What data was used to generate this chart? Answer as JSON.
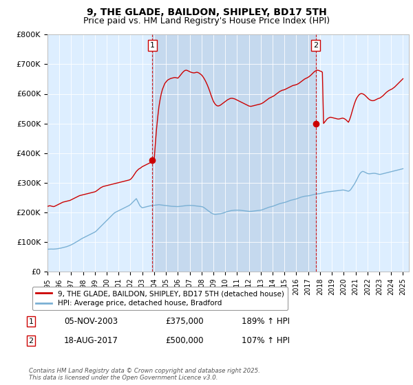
{
  "title": "9, THE GLADE, BAILDON, SHIPLEY, BD17 5TH",
  "subtitle": "Price paid vs. HM Land Registry's House Price Index (HPI)",
  "ylabel_ticks": [
    "£0",
    "£100K",
    "£200K",
    "£300K",
    "£400K",
    "£500K",
    "£600K",
    "£700K",
    "£800K"
  ],
  "ylim": [
    0,
    800000
  ],
  "xlim_start": 1995.0,
  "xlim_end": 2025.5,
  "line1_color": "#cc0000",
  "line2_color": "#7ab0d4",
  "bg_color": "#ddeeff",
  "shade_color": "#c5d9ee",
  "transaction1_x": 2003.844,
  "transaction1_y": 375000,
  "transaction2_x": 2017.633,
  "transaction2_y": 500000,
  "marker_label1": "1",
  "marker_label2": "2",
  "legend_line1": "9, THE GLADE, BAILDON, SHIPLEY, BD17 5TH (detached house)",
  "legend_line2": "HPI: Average price, detached house, Bradford",
  "table_row1": [
    "1",
    "05-NOV-2003",
    "£375,000",
    "189% ↑ HPI"
  ],
  "table_row2": [
    "2",
    "18-AUG-2017",
    "£500,000",
    "107% ↑ HPI"
  ],
  "footnote": "Contains HM Land Registry data © Crown copyright and database right 2025.\nThis data is licensed under the Open Government Licence v3.0.",
  "title_fontsize": 10,
  "subtitle_fontsize": 9,
  "tick_fontsize": 8,
  "hpi_data": {
    "years": [
      1995.0,
      1995.1,
      1995.2,
      1995.3,
      1995.4,
      1995.5,
      1995.6,
      1995.7,
      1995.8,
      1995.9,
      1996.0,
      1996.1,
      1996.2,
      1996.3,
      1996.4,
      1996.5,
      1996.6,
      1996.7,
      1996.8,
      1996.9,
      1997.0,
      1997.1,
      1997.2,
      1997.3,
      1997.4,
      1997.5,
      1997.6,
      1997.7,
      1997.8,
      1997.9,
      1998.0,
      1998.1,
      1998.2,
      1998.3,
      1998.4,
      1998.5,
      1998.6,
      1998.7,
      1998.8,
      1998.9,
      1999.0,
      1999.1,
      1999.2,
      1999.3,
      1999.4,
      1999.5,
      1999.6,
      1999.7,
      1999.8,
      1999.9,
      2000.0,
      2000.1,
      2000.2,
      2000.3,
      2000.4,
      2000.5,
      2000.6,
      2000.7,
      2000.8,
      2000.9,
      2001.0,
      2001.1,
      2001.2,
      2001.3,
      2001.4,
      2001.5,
      2001.6,
      2001.7,
      2001.8,
      2001.9,
      2002.0,
      2002.1,
      2002.2,
      2002.3,
      2002.4,
      2002.5,
      2002.6,
      2002.7,
      2002.8,
      2002.9,
      2003.0,
      2003.1,
      2003.2,
      2003.3,
      2003.4,
      2003.5,
      2003.6,
      2003.7,
      2003.8,
      2003.9,
      2004.0,
      2004.1,
      2004.2,
      2004.3,
      2004.4,
      2004.5,
      2004.6,
      2004.7,
      2004.8,
      2004.9,
      2005.0,
      2005.1,
      2005.2,
      2005.3,
      2005.4,
      2005.5,
      2005.6,
      2005.7,
      2005.8,
      2005.9,
      2006.0,
      2006.1,
      2006.2,
      2006.3,
      2006.4,
      2006.5,
      2006.6,
      2006.7,
      2006.8,
      2006.9,
      2007.0,
      2007.1,
      2007.2,
      2007.3,
      2007.4,
      2007.5,
      2007.6,
      2007.7,
      2007.8,
      2007.9,
      2008.0,
      2008.1,
      2008.2,
      2008.3,
      2008.4,
      2008.5,
      2008.6,
      2008.7,
      2008.8,
      2008.9,
      2009.0,
      2009.1,
      2009.2,
      2009.3,
      2009.4,
      2009.5,
      2009.6,
      2009.7,
      2009.8,
      2009.9,
      2010.0,
      2010.1,
      2010.2,
      2010.3,
      2010.4,
      2010.5,
      2010.6,
      2010.7,
      2010.8,
      2010.9,
      2011.0,
      2011.1,
      2011.2,
      2011.3,
      2011.4,
      2011.5,
      2011.6,
      2011.7,
      2011.8,
      2011.9,
      2012.0,
      2012.1,
      2012.2,
      2012.3,
      2012.4,
      2012.5,
      2012.6,
      2012.7,
      2012.8,
      2012.9,
      2013.0,
      2013.1,
      2013.2,
      2013.3,
      2013.4,
      2013.5,
      2013.6,
      2013.7,
      2013.8,
      2013.9,
      2014.0,
      2014.1,
      2014.2,
      2014.3,
      2014.4,
      2014.5,
      2014.6,
      2014.7,
      2014.8,
      2014.9,
      2015.0,
      2015.1,
      2015.2,
      2015.3,
      2015.4,
      2015.5,
      2015.6,
      2015.7,
      2015.8,
      2015.9,
      2016.0,
      2016.1,
      2016.2,
      2016.3,
      2016.4,
      2016.5,
      2016.6,
      2016.7,
      2016.8,
      2016.9,
      2017.0,
      2017.1,
      2017.2,
      2017.3,
      2017.4,
      2017.5,
      2017.6,
      2017.7,
      2017.8,
      2017.9,
      2018.0,
      2018.1,
      2018.2,
      2018.3,
      2018.4,
      2018.5,
      2018.6,
      2018.7,
      2018.8,
      2018.9,
      2019.0,
      2019.1,
      2019.2,
      2019.3,
      2019.4,
      2019.5,
      2019.6,
      2019.7,
      2019.8,
      2019.9,
      2020.0,
      2020.1,
      2020.2,
      2020.3,
      2020.4,
      2020.5,
      2020.6,
      2020.7,
      2020.8,
      2020.9,
      2021.0,
      2021.1,
      2021.2,
      2021.3,
      2021.4,
      2021.5,
      2021.6,
      2021.7,
      2021.8,
      2021.9,
      2022.0,
      2022.1,
      2022.2,
      2022.3,
      2022.4,
      2022.5,
      2022.6,
      2022.7,
      2022.8,
      2022.9,
      2023.0,
      2023.1,
      2023.2,
      2023.3,
      2023.4,
      2023.5,
      2023.6,
      2023.7,
      2023.8,
      2023.9,
      2024.0,
      2024.1,
      2024.2,
      2024.3,
      2024.4,
      2024.5,
      2024.6,
      2024.7,
      2024.8,
      2024.9,
      2025.0
    ],
    "values": [
      75000,
      75200,
      75400,
      75600,
      75500,
      75400,
      75600,
      76000,
      76500,
      77000,
      78000,
      78500,
      79500,
      80500,
      81500,
      82500,
      83500,
      85000,
      86500,
      88000,
      90000,
      92000,
      94000,
      96500,
      99000,
      101000,
      103500,
      106000,
      108500,
      111000,
      113000,
      115000,
      117000,
      119000,
      121000,
      123000,
      125000,
      127000,
      129000,
      131000,
      133000,
      136000,
      140000,
      144000,
      148000,
      152000,
      156000,
      160000,
      164000,
      168000,
      172000,
      176000,
      180000,
      184000,
      188000,
      192000,
      196000,
      199000,
      201000,
      203000,
      205000,
      207000,
      209000,
      211000,
      213000,
      215000,
      217000,
      219000,
      221000,
      223000,
      226000,
      230000,
      234000,
      238000,
      242000,
      246000,
      238000,
      230000,
      222000,
      218000,
      215000,
      216000,
      217000,
      218000,
      219000,
      220000,
      221000,
      222000,
      222500,
      223000,
      223500,
      224000,
      224500,
      225000,
      225500,
      225000,
      224500,
      224000,
      223500,
      223000,
      222500,
      222000,
      221500,
      221000,
      220500,
      220000,
      219800,
      219600,
      219400,
      219200,
      219000,
      219500,
      220000,
      220500,
      221000,
      221500,
      222000,
      222500,
      222800,
      223000,
      223200,
      223000,
      222800,
      222500,
      222000,
      221500,
      221000,
      220500,
      220000,
      219500,
      219000,
      218000,
      216000,
      213000,
      210000,
      207000,
      204000,
      201000,
      198000,
      196000,
      194000,
      193000,
      193000,
      193500,
      194000,
      194500,
      195000,
      196000,
      197000,
      198000,
      200000,
      201000,
      202500,
      203500,
      204500,
      205500,
      206000,
      206500,
      207000,
      207000,
      207000,
      207000,
      207000,
      206500,
      206000,
      205500,
      205000,
      204500,
      204000,
      203500,
      203000,
      203000,
      203000,
      203500,
      204000,
      204500,
      205000,
      205500,
      206000,
      206500,
      207000,
      208000,
      209500,
      211000,
      212500,
      214000,
      215500,
      217000,
      218000,
      219000,
      220000,
      221500,
      223000,
      224500,
      226000,
      227500,
      229000,
      230000,
      231000,
      232000,
      233000,
      234000,
      235500,
      237000,
      238500,
      240000,
      241000,
      242000,
      243000,
      244000,
      245000,
      246500,
      248000,
      249500,
      251000,
      252000,
      253000,
      254000,
      254500,
      255000,
      255500,
      256000,
      257000,
      258000,
      259000,
      260000,
      261000,
      261500,
      262000,
      262500,
      263000,
      264000,
      265000,
      266000,
      267000,
      268000,
      268500,
      269000,
      269500,
      270000,
      270500,
      271000,
      271500,
      272000,
      272500,
      273000,
      273500,
      274000,
      274500,
      275000,
      275000,
      274000,
      273000,
      272000,
      271000,
      273000,
      277000,
      283000,
      289000,
      295000,
      302000,
      310000,
      318000,
      326000,
      332000,
      336000,
      338000,
      337000,
      335000,
      333000,
      331000,
      330000,
      330000,
      330500,
      331000,
      331500,
      331500,
      331000,
      330000,
      329000,
      328000,
      328000,
      329000,
      330000,
      331000,
      332000,
      333000,
      334000,
      335000,
      336000,
      337000,
      338000,
      339000,
      340000,
      341000,
      342000,
      343000,
      344000,
      345000,
      346000,
      347000
    ]
  },
  "red_data": {
    "years": [
      1995.0,
      1995.1,
      1995.2,
      1995.3,
      1995.4,
      1995.5,
      1995.6,
      1995.7,
      1995.8,
      1995.9,
      1996.0,
      1996.1,
      1996.2,
      1996.3,
      1996.4,
      1996.5,
      1996.6,
      1996.7,
      1996.8,
      1996.9,
      1997.0,
      1997.1,
      1997.2,
      1997.3,
      1997.4,
      1997.5,
      1997.6,
      1997.7,
      1997.8,
      1997.9,
      1998.0,
      1998.1,
      1998.2,
      1998.3,
      1998.4,
      1998.5,
      1998.6,
      1998.7,
      1998.8,
      1998.9,
      1999.0,
      1999.1,
      1999.2,
      1999.3,
      1999.4,
      1999.5,
      1999.6,
      1999.7,
      1999.8,
      1999.9,
      2000.0,
      2000.1,
      2000.2,
      2000.3,
      2000.4,
      2000.5,
      2000.6,
      2000.7,
      2000.8,
      2000.9,
      2001.0,
      2001.1,
      2001.2,
      2001.3,
      2001.4,
      2001.5,
      2001.6,
      2001.7,
      2001.8,
      2001.9,
      2002.0,
      2002.1,
      2002.2,
      2002.3,
      2002.4,
      2002.5,
      2002.6,
      2002.7,
      2002.8,
      2002.9,
      2003.0,
      2003.1,
      2003.2,
      2003.3,
      2003.4,
      2003.5,
      2003.6,
      2003.7,
      2003.8,
      2003.9,
      2004.0,
      2004.1,
      2004.2,
      2004.3,
      2004.4,
      2004.5,
      2004.6,
      2004.7,
      2004.8,
      2004.9,
      2005.0,
      2005.1,
      2005.2,
      2005.3,
      2005.4,
      2005.5,
      2005.6,
      2005.7,
      2005.8,
      2005.9,
      2006.0,
      2006.1,
      2006.2,
      2006.3,
      2006.4,
      2006.5,
      2006.6,
      2006.7,
      2006.8,
      2006.9,
      2007.0,
      2007.1,
      2007.2,
      2007.3,
      2007.4,
      2007.5,
      2007.6,
      2007.7,
      2007.8,
      2007.9,
      2008.0,
      2008.1,
      2008.2,
      2008.3,
      2008.4,
      2008.5,
      2008.6,
      2008.7,
      2008.8,
      2008.9,
      2009.0,
      2009.1,
      2009.2,
      2009.3,
      2009.4,
      2009.5,
      2009.6,
      2009.7,
      2009.8,
      2009.9,
      2010.0,
      2010.1,
      2010.2,
      2010.3,
      2010.4,
      2010.5,
      2010.6,
      2010.7,
      2010.8,
      2010.9,
      2011.0,
      2011.1,
      2011.2,
      2011.3,
      2011.4,
      2011.5,
      2011.6,
      2011.7,
      2011.8,
      2011.9,
      2012.0,
      2012.1,
      2012.2,
      2012.3,
      2012.4,
      2012.5,
      2012.6,
      2012.7,
      2012.8,
      2012.9,
      2013.0,
      2013.1,
      2013.2,
      2013.3,
      2013.4,
      2013.5,
      2013.6,
      2013.7,
      2013.8,
      2013.9,
      2014.0,
      2014.1,
      2014.2,
      2014.3,
      2014.4,
      2014.5,
      2014.6,
      2014.7,
      2014.8,
      2014.9,
      2015.0,
      2015.1,
      2015.2,
      2015.3,
      2015.4,
      2015.5,
      2015.6,
      2015.7,
      2015.8,
      2015.9,
      2016.0,
      2016.1,
      2016.2,
      2016.3,
      2016.4,
      2016.5,
      2016.6,
      2016.7,
      2016.8,
      2016.9,
      2017.0,
      2017.1,
      2017.2,
      2017.3,
      2017.4,
      2017.5,
      2017.6,
      2017.7,
      2017.8,
      2017.9,
      2018.0,
      2018.1,
      2018.2,
      2018.3,
      2018.4,
      2018.5,
      2018.6,
      2018.7,
      2018.8,
      2018.9,
      2019.0,
      2019.1,
      2019.2,
      2019.3,
      2019.4,
      2019.5,
      2019.6,
      2019.7,
      2019.8,
      2019.9,
      2020.0,
      2020.1,
      2020.2,
      2020.3,
      2020.4,
      2020.5,
      2020.6,
      2020.7,
      2020.8,
      2020.9,
      2021.0,
      2021.1,
      2021.2,
      2021.3,
      2021.4,
      2021.5,
      2021.6,
      2021.7,
      2021.8,
      2021.9,
      2022.0,
      2022.1,
      2022.2,
      2022.3,
      2022.4,
      2022.5,
      2022.6,
      2022.7,
      2022.8,
      2022.9,
      2023.0,
      2023.1,
      2023.2,
      2023.3,
      2023.4,
      2023.5,
      2023.6,
      2023.7,
      2023.8,
      2023.9,
      2024.0,
      2024.1,
      2024.2,
      2024.3,
      2024.4,
      2024.5,
      2024.6,
      2024.7,
      2024.8,
      2024.9,
      2025.0
    ],
    "values": [
      220000,
      221000,
      222000,
      221000,
      220000,
      219000,
      220000,
      222000,
      224000,
      226000,
      228000,
      230000,
      232000,
      234000,
      235000,
      236000,
      237000,
      238000,
      239000,
      240000,
      242000,
      244000,
      246000,
      248000,
      250000,
      252000,
      254000,
      256000,
      257000,
      258000,
      259000,
      260000,
      261000,
      262000,
      263000,
      264000,
      265000,
      266000,
      267000,
      268000,
      269000,
      271000,
      274000,
      277000,
      280000,
      283000,
      285000,
      287000,
      288000,
      289000,
      290000,
      291000,
      292000,
      293000,
      294000,
      295000,
      296000,
      297000,
      298000,
      299000,
      300000,
      301000,
      302000,
      303000,
      304000,
      305000,
      306000,
      307000,
      308000,
      309000,
      311000,
      315000,
      320000,
      326000,
      332000,
      338000,
      342000,
      346000,
      348000,
      351000,
      354000,
      356000,
      358000,
      360000,
      362000,
      364000,
      366000,
      368000,
      370000,
      372000,
      375000,
      430000,
      480000,
      520000,
      555000,
      580000,
      600000,
      615000,
      625000,
      635000,
      640000,
      645000,
      648000,
      650000,
      652000,
      653000,
      654000,
      655000,
      655000,
      654000,
      653000,
      657000,
      662000,
      667000,
      672000,
      676000,
      679000,
      680000,
      679000,
      677000,
      675000,
      673000,
      672000,
      671000,
      671000,
      672000,
      673000,
      672000,
      670000,
      667000,
      664000,
      659000,
      653000,
      646000,
      638000,
      629000,
      619000,
      608000,
      596000,
      585000,
      575000,
      568000,
      563000,
      560000,
      559000,
      560000,
      562000,
      565000,
      568000,
      571000,
      574000,
      577000,
      580000,
      582000,
      584000,
      585000,
      585000,
      584000,
      583000,
      581000,
      579000,
      577000,
      575000,
      573000,
      571000,
      569000,
      567000,
      565000,
      563000,
      561000,
      559000,
      558000,
      558000,
      559000,
      560000,
      561000,
      562000,
      563000,
      564000,
      565000,
      566000,
      568000,
      570000,
      573000,
      576000,
      579000,
      582000,
      585000,
      587000,
      589000,
      591000,
      593000,
      596000,
      599000,
      602000,
      605000,
      608000,
      610000,
      612000,
      613000,
      614000,
      616000,
      618000,
      620000,
      622000,
      624000,
      626000,
      628000,
      629000,
      630000,
      631000,
      633000,
      635000,
      638000,
      641000,
      644000,
      647000,
      650000,
      652000,
      654000,
      656000,
      659000,
      662000,
      666000,
      670000,
      674000,
      677000,
      679000,
      680000,
      679000,
      677000,
      676000,
      673000,
      500000,
      505000,
      510000,
      515000,
      518000,
      520000,
      521000,
      520000,
      519000,
      518000,
      517000,
      516000,
      515000,
      515000,
      516000,
      517000,
      518000,
      517000,
      515000,
      512000,
      508000,
      504000,
      513000,
      525000,
      539000,
      553000,
      566000,
      577000,
      586000,
      592000,
      597000,
      600000,
      601000,
      600000,
      598000,
      595000,
      591000,
      587000,
      583000,
      580000,
      578000,
      577000,
      577000,
      578000,
      580000,
      582000,
      584000,
      585000,
      587000,
      590000,
      593000,
      597000,
      601000,
      605000,
      608000,
      611000,
      613000,
      615000,
      617000,
      620000,
      623000,
      627000,
      631000,
      635000,
      639000,
      643000,
      647000,
      651000
    ]
  }
}
